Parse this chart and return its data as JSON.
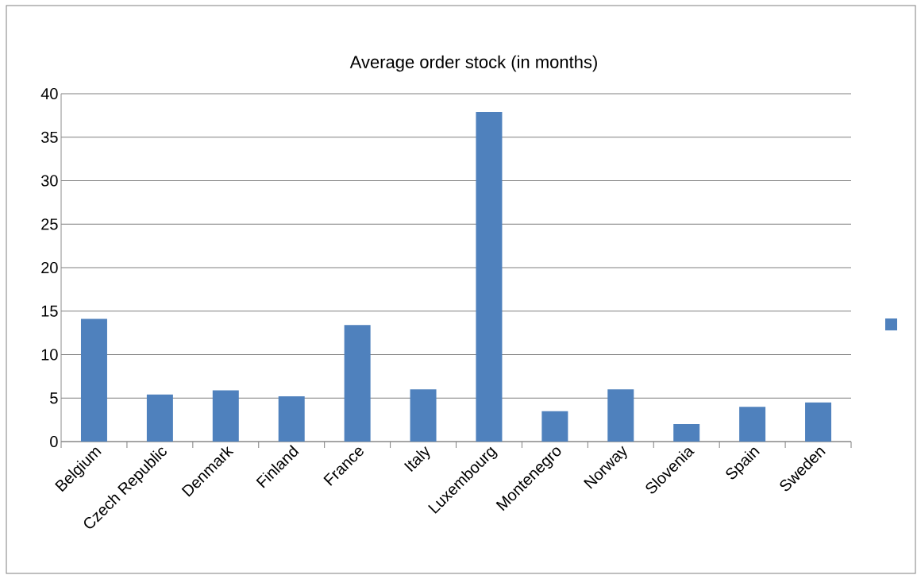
{
  "chart_data": {
    "type": "bar",
    "title": "Average  order stock (in months)",
    "categories": [
      "Belgium",
      "Czech Republic",
      "Denmark",
      "Finland",
      "France",
      "Italy",
      "Luxembourg",
      "Montenegro",
      "Norway",
      "Slovenia",
      "Spain",
      "Sweden"
    ],
    "values": [
      14.1,
      5.4,
      5.9,
      5.2,
      13.4,
      6.0,
      37.9,
      3.5,
      6.0,
      2.0,
      4.0,
      4.5
    ],
    "color": "#4f81bd",
    "ylim": [
      0,
      40
    ],
    "yticks": [
      0,
      5,
      10,
      15,
      20,
      25,
      30,
      35,
      40
    ],
    "grid": "y"
  }
}
